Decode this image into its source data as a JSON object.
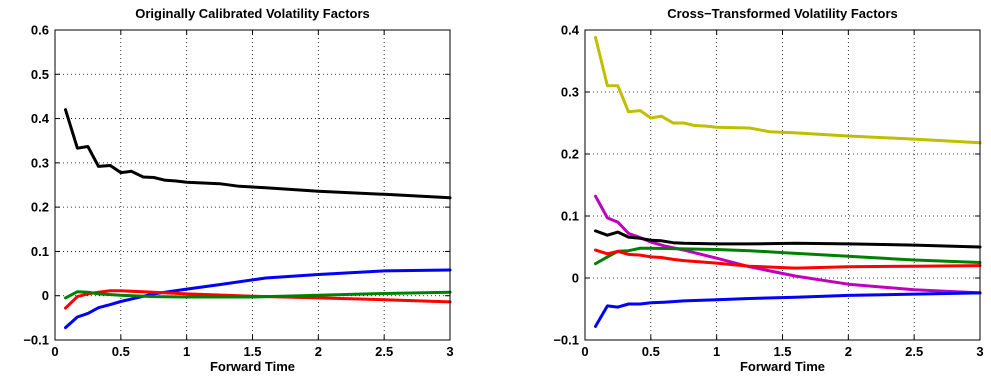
{
  "chart_data": [
    {
      "type": "line",
      "title": "Originally Calibrated Volatility Factors",
      "xlabel": "Forward Time",
      "ylabel": "",
      "xlim": [
        0,
        3
      ],
      "ylim": [
        -0.1,
        0.6
      ],
      "xticks": [
        0,
        0.5,
        1,
        1.5,
        2,
        2.5,
        3
      ],
      "xtick_labels": [
        "0",
        "0.5",
        "1",
        "1.5",
        "2",
        "2.5",
        "3"
      ],
      "yticks": [
        -0.1,
        0,
        0.1,
        0.2,
        0.3,
        0.4,
        0.5,
        0.6
      ],
      "ytick_labels": [
        "−0.1",
        "0",
        "0.1",
        "0.2",
        "0.3",
        "0.4",
        "0.5",
        "0.6"
      ],
      "grid": true,
      "series": [
        {
          "color": "#000000",
          "points": [
            [
              0.08,
              0.42
            ],
            [
              0.17,
              0.333
            ],
            [
              0.25,
              0.337
            ],
            [
              0.33,
              0.292
            ],
            [
              0.42,
              0.294
            ],
            [
              0.5,
              0.278
            ],
            [
              0.58,
              0.281
            ],
            [
              0.67,
              0.268
            ],
            [
              0.75,
              0.267
            ],
            [
              0.83,
              0.261
            ],
            [
              0.92,
              0.259
            ],
            [
              1.0,
              0.256
            ],
            [
              1.25,
              0.253
            ],
            [
              1.4,
              0.247
            ],
            [
              1.6,
              0.244
            ],
            [
              2.0,
              0.236
            ],
            [
              2.5,
              0.229
            ],
            [
              3.0,
              0.221
            ]
          ]
        },
        {
          "color": "#0000ff",
          "points": [
            [
              0.08,
              -0.072
            ],
            [
              0.17,
              -0.048
            ],
            [
              0.25,
              -0.04
            ],
            [
              0.33,
              -0.027
            ],
            [
              0.42,
              -0.02
            ],
            [
              0.5,
              -0.013
            ],
            [
              0.6,
              -0.006
            ],
            [
              0.75,
              0.004
            ],
            [
              1.0,
              0.015
            ],
            [
              1.25,
              0.025
            ],
            [
              1.6,
              0.04
            ],
            [
              2.0,
              0.048
            ],
            [
              2.5,
              0.056
            ],
            [
              3.0,
              0.058
            ]
          ]
        },
        {
          "color": "#ff0000",
          "points": [
            [
              0.08,
              -0.028
            ],
            [
              0.17,
              -0.002
            ],
            [
              0.25,
              0.004
            ],
            [
              0.33,
              0.008
            ],
            [
              0.42,
              0.011
            ],
            [
              0.5,
              0.011
            ],
            [
              0.75,
              0.008
            ],
            [
              1.0,
              0.004
            ],
            [
              1.5,
              -0.001
            ],
            [
              2.0,
              -0.005
            ],
            [
              2.5,
              -0.009
            ],
            [
              3.0,
              -0.014
            ]
          ]
        },
        {
          "color": "#008000",
          "points": [
            [
              0.08,
              -0.005
            ],
            [
              0.17,
              0.009
            ],
            [
              0.25,
              0.008
            ],
            [
              0.33,
              0.004
            ],
            [
              0.5,
              0.001
            ],
            [
              0.75,
              -0.002
            ],
            [
              1.0,
              -0.003
            ],
            [
              1.5,
              -0.003
            ],
            [
              2.0,
              0.001
            ],
            [
              2.5,
              0.005
            ],
            [
              3.0,
              0.008
            ]
          ]
        }
      ]
    },
    {
      "type": "line",
      "title": "Cross−Transformed Volatility Factors",
      "xlabel": "Forward Time",
      "ylabel": "",
      "xlim": [
        0,
        3
      ],
      "ylim": [
        -0.1,
        0.4
      ],
      "xticks": [
        0,
        0.5,
        1,
        1.5,
        2,
        2.5,
        3
      ],
      "xtick_labels": [
        "0",
        "0.5",
        "1",
        "1.5",
        "2",
        "2.5",
        "3"
      ],
      "yticks": [
        -0.1,
        0,
        0.1,
        0.2,
        0.3,
        0.4
      ],
      "ytick_labels": [
        "−0.1",
        "0",
        "0.1",
        "0.2",
        "0.3",
        "0.4"
      ],
      "grid": true,
      "series": [
        {
          "color": "#bfbf00",
          "points": [
            [
              0.08,
              0.388
            ],
            [
              0.17,
              0.31
            ],
            [
              0.25,
              0.31
            ],
            [
              0.33,
              0.268
            ],
            [
              0.42,
              0.27
            ],
            [
              0.5,
              0.258
            ],
            [
              0.58,
              0.261
            ],
            [
              0.67,
              0.25
            ],
            [
              0.75,
              0.25
            ],
            [
              0.83,
              0.246
            ],
            [
              0.92,
              0.245
            ],
            [
              1.0,
              0.243
            ],
            [
              1.25,
              0.242
            ],
            [
              1.4,
              0.236
            ],
            [
              1.6,
              0.234
            ],
            [
              2.0,
              0.229
            ],
            [
              2.5,
              0.224
            ],
            [
              3.0,
              0.218
            ]
          ]
        },
        {
          "color": "#bf00bf",
          "points": [
            [
              0.08,
              0.132
            ],
            [
              0.17,
              0.097
            ],
            [
              0.25,
              0.09
            ],
            [
              0.33,
              0.072
            ],
            [
              0.42,
              0.065
            ],
            [
              0.5,
              0.058
            ],
            [
              0.6,
              0.052
            ],
            [
              0.75,
              0.045
            ],
            [
              1.0,
              0.032
            ],
            [
              1.25,
              0.018
            ],
            [
              1.6,
              0.003
            ],
            [
              2.0,
              -0.01
            ],
            [
              2.5,
              -0.019
            ],
            [
              3.0,
              -0.024
            ]
          ]
        },
        {
          "color": "#000000",
          "points": [
            [
              0.08,
              0.076
            ],
            [
              0.17,
              0.069
            ],
            [
              0.25,
              0.074
            ],
            [
              0.33,
              0.066
            ],
            [
              0.42,
              0.064
            ],
            [
              0.5,
              0.061
            ],
            [
              0.58,
              0.06
            ],
            [
              0.67,
              0.057
            ],
            [
              0.75,
              0.056
            ],
            [
              1.0,
              0.055
            ],
            [
              1.25,
              0.055
            ],
            [
              1.6,
              0.056
            ],
            [
              2.0,
              0.055
            ],
            [
              2.5,
              0.053
            ],
            [
              3.0,
              0.05
            ]
          ]
        },
        {
          "color": "#008000",
          "points": [
            [
              0.08,
              0.023
            ],
            [
              0.17,
              0.034
            ],
            [
              0.25,
              0.043
            ],
            [
              0.33,
              0.044
            ],
            [
              0.42,
              0.048
            ],
            [
              0.5,
              0.048
            ],
            [
              0.75,
              0.047
            ],
            [
              1.0,
              0.046
            ],
            [
              1.25,
              0.044
            ],
            [
              1.5,
              0.041
            ],
            [
              2.0,
              0.035
            ],
            [
              2.5,
              0.029
            ],
            [
              3.0,
              0.025
            ]
          ]
        },
        {
          "color": "#ff0000",
          "points": [
            [
              0.08,
              0.045
            ],
            [
              0.17,
              0.039
            ],
            [
              0.25,
              0.043
            ],
            [
              0.33,
              0.038
            ],
            [
              0.42,
              0.037
            ],
            [
              0.5,
              0.034
            ],
            [
              0.58,
              0.033
            ],
            [
              0.67,
              0.03
            ],
            [
              0.75,
              0.028
            ],
            [
              1.0,
              0.024
            ],
            [
              1.25,
              0.019
            ],
            [
              1.6,
              0.016
            ],
            [
              2.0,
              0.018
            ],
            [
              2.5,
              0.019
            ],
            [
              3.0,
              0.02
            ]
          ]
        },
        {
          "color": "#0000ff",
          "points": [
            [
              0.08,
              -0.078
            ],
            [
              0.17,
              -0.045
            ],
            [
              0.25,
              -0.047
            ],
            [
              0.33,
              -0.042
            ],
            [
              0.42,
              -0.042
            ],
            [
              0.5,
              -0.04
            ],
            [
              0.6,
              -0.039
            ],
            [
              0.75,
              -0.037
            ],
            [
              1.0,
              -0.035
            ],
            [
              1.25,
              -0.033
            ],
            [
              1.6,
              -0.031
            ],
            [
              2.0,
              -0.028
            ],
            [
              2.5,
              -0.026
            ],
            [
              3.0,
              -0.024
            ]
          ]
        }
      ]
    }
  ]
}
